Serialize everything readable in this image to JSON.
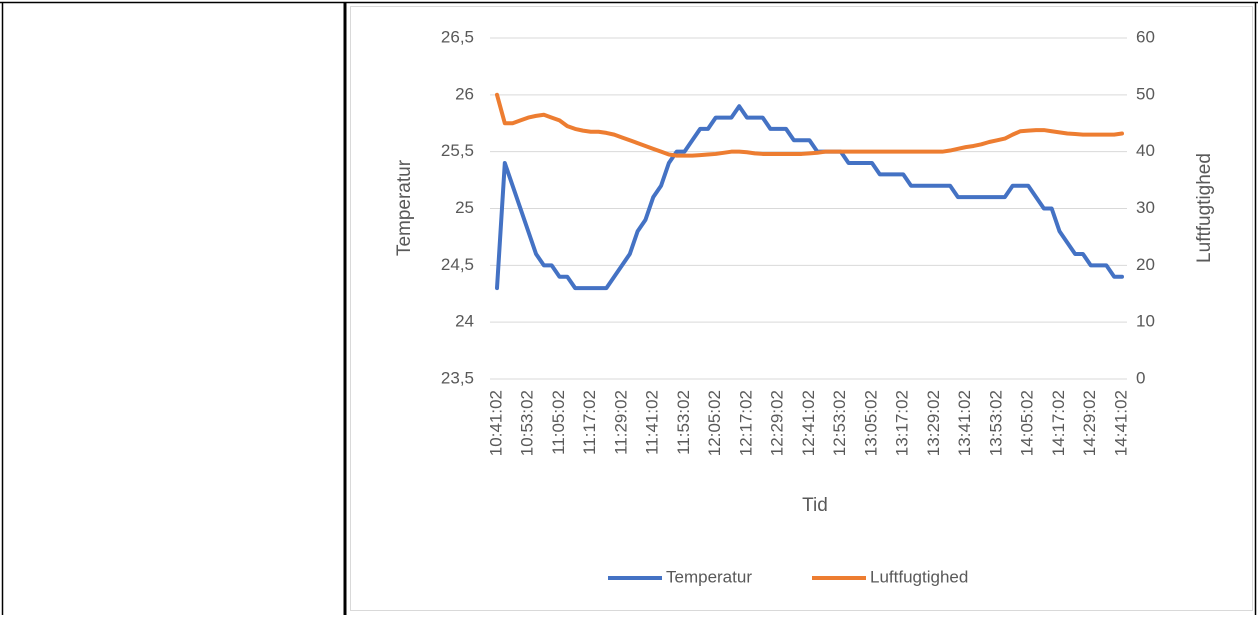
{
  "chart_data": {
    "type": "line",
    "x_label": "Tid",
    "y_label": "Temperatur",
    "y2_label": "Luftfugtighed",
    "categories": [
      "10:41:02",
      null,
      null,
      null,
      "10:53:02",
      null,
      null,
      null,
      "11:05:02",
      null,
      null,
      null,
      "11:17:02",
      null,
      null,
      null,
      "11:29:02",
      null,
      null,
      null,
      "11:41:02",
      null,
      null,
      null,
      "11:53:02",
      null,
      null,
      null,
      "12:05:02",
      null,
      null,
      null,
      "12:17:02",
      null,
      null,
      null,
      "12:29:02",
      null,
      null,
      null,
      "12:41:02",
      null,
      null,
      null,
      "12:53:02",
      null,
      null,
      null,
      "13:05:02",
      null,
      null,
      null,
      "13:17:02",
      null,
      null,
      null,
      "13:29:02",
      null,
      null,
      null,
      "13:41:02",
      null,
      null,
      null,
      "13:53:02",
      null,
      null,
      null,
      "14:05:02",
      null,
      null,
      null,
      "14:17:02",
      null,
      null,
      null,
      "14:29:02",
      null,
      null,
      null,
      "14:41:02"
    ],
    "series": [
      {
        "name": "Temperatur",
        "color": "#4472c4",
        "axis": "y",
        "values": [
          24.3,
          25.4,
          25.2,
          25.0,
          24.8,
          24.6,
          24.5,
          24.5,
          24.4,
          24.4,
          24.3,
          24.3,
          24.3,
          24.3,
          24.3,
          24.4,
          24.5,
          24.6,
          24.8,
          24.9,
          25.1,
          25.2,
          25.4,
          25.5,
          25.5,
          25.6,
          25.7,
          25.7,
          25.8,
          25.8,
          25.8,
          25.9,
          25.8,
          25.8,
          25.8,
          25.7,
          25.7,
          25.7,
          25.6,
          25.6,
          25.6,
          25.5,
          25.5,
          25.5,
          25.5,
          25.4,
          25.4,
          25.4,
          25.4,
          25.3,
          25.3,
          25.3,
          25.3,
          25.2,
          25.2,
          25.2,
          25.2,
          25.2,
          25.2,
          25.1,
          25.1,
          25.1,
          25.1,
          25.1,
          25.1,
          25.1,
          25.2,
          25.2,
          25.2,
          25.1,
          25.0,
          25.0,
          24.8,
          24.7,
          24.6,
          24.6,
          24.5,
          24.5,
          24.5,
          24.4,
          24.4
        ]
      },
      {
        "name": "Luftfugtighed",
        "color": "#ed7d31",
        "axis": "y2",
        "values": [
          50,
          45,
          45,
          45.5,
          46,
          46.3,
          46.5,
          46,
          45.5,
          44.5,
          44,
          43.7,
          43.5,
          43.5,
          43.3,
          43,
          42.5,
          42,
          41.5,
          41,
          40.5,
          40,
          39.5,
          39.3,
          39.3,
          39.3,
          39.4,
          39.5,
          39.6,
          39.8,
          40,
          40,
          39.9,
          39.7,
          39.6,
          39.6,
          39.6,
          39.6,
          39.6,
          39.6,
          39.7,
          39.8,
          40,
          40,
          40,
          40,
          40,
          40,
          40,
          40,
          40,
          40,
          40,
          40,
          40,
          40,
          40,
          40,
          40.2,
          40.5,
          40.8,
          41,
          41.3,
          41.7,
          42,
          42.3,
          43,
          43.6,
          43.7,
          43.8,
          43.8,
          43.6,
          43.4,
          43.2,
          43.1,
          43,
          43,
          43,
          43,
          43,
          43.2
        ]
      }
    ],
    "ylim": [
      23.5,
      26.5
    ],
    "yticks": [
      {
        "value": 23.5,
        "label": "23,5"
      },
      24,
      {
        "value": 24.5,
        "label": "24,5"
      },
      25,
      {
        "value": 25.5,
        "label": "25,5"
      },
      26,
      {
        "value": 26.5,
        "label": "26,5"
      }
    ],
    "y2lim": [
      0,
      60
    ],
    "y2ticks": [
      0,
      10,
      20,
      30,
      40,
      50,
      60
    ],
    "grid": true,
    "legend": "bottom"
  }
}
